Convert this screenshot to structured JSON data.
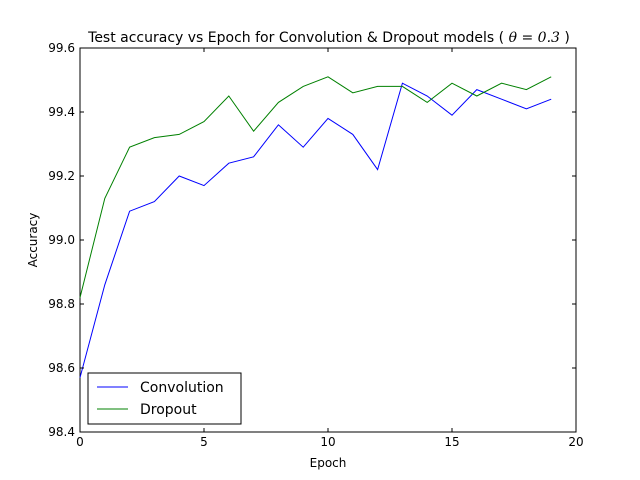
{
  "chart_data": {
    "type": "line",
    "title_main": "Test accuracy vs Epoch for Convolution & Dropout models (",
    "title_math": "θ = 0.3",
    "title_close": ")",
    "xlabel": "Epoch",
    "ylabel": "Accuracy",
    "xlim": [
      0,
      20
    ],
    "ylim": [
      98.4,
      99.6
    ],
    "xticks": [
      0,
      5,
      10,
      15,
      20
    ],
    "xtick_labels": [
      "0",
      "5",
      "10",
      "15",
      "20"
    ],
    "yticks": [
      98.4,
      98.6,
      98.8,
      99.0,
      99.2,
      99.4,
      99.6
    ],
    "ytick_labels": [
      "98.4",
      "98.6",
      "98.8",
      "99.0",
      "99.2",
      "99.4",
      "99.6"
    ],
    "grid": false,
    "legend_position": "lower-left",
    "x": [
      0,
      1,
      2,
      3,
      4,
      5,
      6,
      7,
      8,
      9,
      10,
      11,
      12,
      13,
      14,
      15,
      16,
      17,
      18,
      19
    ],
    "series": [
      {
        "name": "Convolution",
        "color": "#0000ff",
        "values": [
          98.57,
          98.86,
          99.09,
          99.12,
          99.2,
          99.17,
          99.24,
          99.26,
          99.36,
          99.29,
          99.38,
          99.33,
          99.22,
          99.49,
          99.45,
          99.39,
          99.47,
          99.44,
          99.41,
          99.44
        ]
      },
      {
        "name": "Dropout",
        "color": "#008000",
        "values": [
          98.82,
          99.13,
          99.29,
          99.32,
          99.33,
          99.37,
          99.45,
          99.34,
          99.43,
          99.48,
          99.51,
          99.46,
          99.48,
          99.48,
          99.43,
          99.49,
          99.45,
          99.49,
          99.47,
          99.51
        ]
      }
    ]
  }
}
